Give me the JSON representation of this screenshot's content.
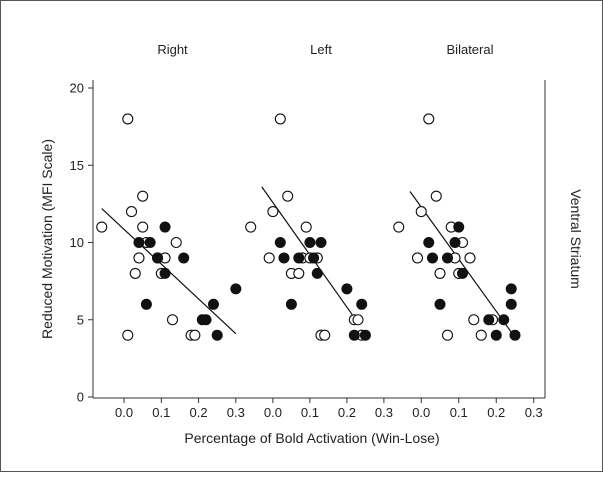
{
  "chart_data": {
    "type": "scatter",
    "ylabel": "Reduced Motivation (MFI Scale)",
    "xlabel": "Percentage of Bold Activation (Win-Lose)",
    "right_label": "Ventral Striatum",
    "ylim": [
      0,
      20
    ],
    "yticks": [
      "0",
      "5",
      "10",
      "15",
      "20"
    ],
    "xticks": [
      "0.0",
      "0.1",
      "0.2",
      "0.3"
    ],
    "xtick_values": [
      0.0,
      0.1,
      0.2,
      0.3
    ],
    "panels": [
      {
        "title": "Right",
        "xlim": [
          -0.07,
          0.33
        ],
        "fit_line": [
          [
            -0.06,
            12.2
          ],
          [
            0.3,
            4.1
          ]
        ],
        "open": [
          [
            -0.06,
            11
          ],
          [
            0.01,
            18
          ],
          [
            0.01,
            4
          ],
          [
            0.02,
            12
          ],
          [
            0.03,
            8
          ],
          [
            0.04,
            9
          ],
          [
            0.05,
            13
          ],
          [
            0.05,
            11
          ],
          [
            0.06,
            10
          ],
          [
            0.09,
            9
          ],
          [
            0.1,
            8
          ],
          [
            0.11,
            9
          ],
          [
            0.13,
            5
          ],
          [
            0.14,
            10
          ],
          [
            0.18,
            4
          ],
          [
            0.19,
            4
          ]
        ],
        "filled": [
          [
            0.04,
            10
          ],
          [
            0.06,
            6
          ],
          [
            0.07,
            10
          ],
          [
            0.09,
            9
          ],
          [
            0.11,
            8
          ],
          [
            0.11,
            11
          ],
          [
            0.16,
            9
          ],
          [
            0.21,
            5
          ],
          [
            0.22,
            5
          ],
          [
            0.24,
            6
          ],
          [
            0.25,
            4
          ],
          [
            0.3,
            7
          ]
        ]
      },
      {
        "title": "Left",
        "xlim": [
          -0.07,
          0.33
        ],
        "fit_line": [
          [
            -0.03,
            13.6
          ],
          [
            0.23,
            4.8
          ]
        ],
        "open": [
          [
            -0.06,
            11
          ],
          [
            -0.01,
            9
          ],
          [
            0.0,
            12
          ],
          [
            0.02,
            18
          ],
          [
            0.04,
            13
          ],
          [
            0.05,
            8
          ],
          [
            0.07,
            8
          ],
          [
            0.08,
            9
          ],
          [
            0.09,
            11
          ],
          [
            0.1,
            9
          ],
          [
            0.12,
            9
          ],
          [
            0.13,
            4
          ],
          [
            0.14,
            4
          ],
          [
            0.22,
            5
          ],
          [
            0.23,
            5
          ],
          [
            0.24,
            4
          ]
        ],
        "filled": [
          [
            0.02,
            10
          ],
          [
            0.03,
            9
          ],
          [
            0.05,
            6
          ],
          [
            0.07,
            9
          ],
          [
            0.1,
            10
          ],
          [
            0.11,
            9
          ],
          [
            0.12,
            8
          ],
          [
            0.13,
            10
          ],
          [
            0.2,
            7
          ],
          [
            0.22,
            4
          ],
          [
            0.24,
            6
          ],
          [
            0.25,
            4
          ]
        ]
      },
      {
        "title": "Bilateral",
        "xlim": [
          -0.07,
          0.33
        ],
        "fit_line": [
          [
            -0.03,
            13.3
          ],
          [
            0.24,
            4.2
          ]
        ],
        "open": [
          [
            -0.06,
            11
          ],
          [
            -0.01,
            9
          ],
          [
            0.0,
            12
          ],
          [
            0.02,
            18
          ],
          [
            0.04,
            13
          ],
          [
            0.05,
            8
          ],
          [
            0.07,
            4
          ],
          [
            0.08,
            11
          ],
          [
            0.09,
            9
          ],
          [
            0.1,
            8
          ],
          [
            0.11,
            10
          ],
          [
            0.13,
            9
          ],
          [
            0.14,
            5
          ],
          [
            0.16,
            4
          ],
          [
            0.19,
            5
          ]
        ],
        "filled": [
          [
            0.02,
            10
          ],
          [
            0.03,
            9
          ],
          [
            0.05,
            6
          ],
          [
            0.07,
            9
          ],
          [
            0.09,
            10
          ],
          [
            0.1,
            11
          ],
          [
            0.11,
            8
          ],
          [
            0.18,
            5
          ],
          [
            0.2,
            4
          ],
          [
            0.22,
            5
          ],
          [
            0.24,
            6
          ],
          [
            0.24,
            7
          ],
          [
            0.25,
            4
          ]
        ]
      }
    ]
  }
}
